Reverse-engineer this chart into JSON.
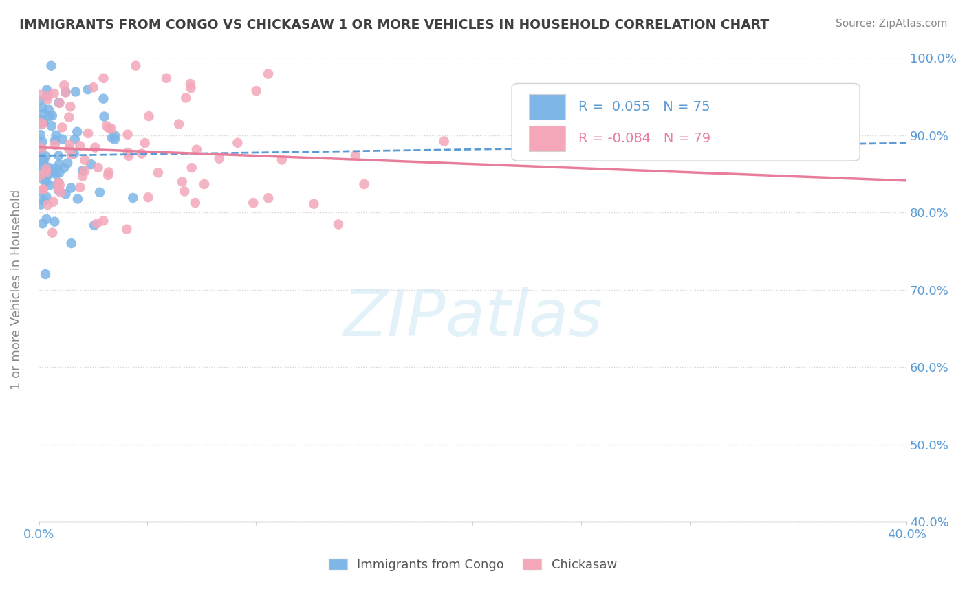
{
  "title": "IMMIGRANTS FROM CONGO VS CHICKASAW 1 OR MORE VEHICLES IN HOUSEHOLD CORRELATION CHART",
  "source_text": "Source: ZipAtlas.com",
  "xlabel": "",
  "ylabel": "1 or more Vehicles in Household",
  "xlim": [
    0.0,
    0.4
  ],
  "ylim": [
    0.4,
    1.0
  ],
  "xtick_vals": [
    0.0,
    0.05,
    0.1,
    0.15,
    0.2,
    0.25,
    0.3,
    0.35,
    0.4
  ],
  "xtick_labels": [
    "0.0%",
    "",
    "",
    "",
    "",
    "",
    "",
    "",
    "40.0%"
  ],
  "ytick_vals": [
    0.4,
    0.5,
    0.6,
    0.7,
    0.8,
    0.9,
    1.0
  ],
  "ytick_labels": [
    "40.0%",
    "50.0%",
    "60.0%",
    "70.0%",
    "80.0%",
    "90.0%",
    "100.0%"
  ],
  "blue_R": 0.055,
  "blue_N": 75,
  "pink_R": -0.084,
  "pink_N": 79,
  "blue_color": "#7EB6E8",
  "pink_color": "#F4A7B9",
  "blue_line_color": "#5B9BD5",
  "pink_line_color": "#E87D9B",
  "legend_blue_label": "Immigrants from Congo",
  "legend_pink_label": "Chickasaw",
  "title_color": "#404040",
  "axis_color": "#5B9BD5"
}
